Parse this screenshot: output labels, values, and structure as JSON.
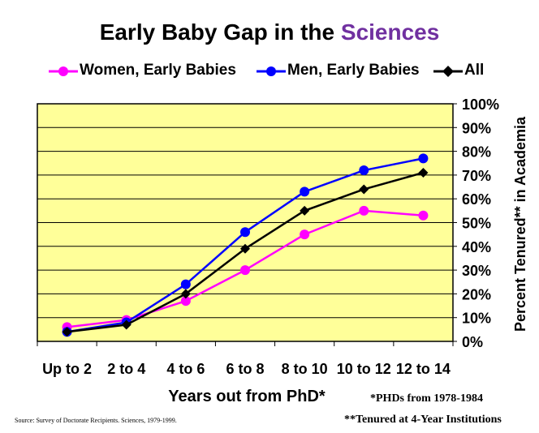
{
  "chart_data": {
    "type": "line",
    "title_parts": [
      "Early Baby Gap in the ",
      "Sciences"
    ],
    "title_accent": "#7030a0",
    "xlabel": "Years out from PhD*",
    "ylabel": "Percent Tenured** in Academia",
    "categories": [
      "Up to 2",
      "2 to 4",
      "4 to 6",
      "6 to 8",
      "8 to 10",
      "10 to 12",
      "12 to 14"
    ],
    "ylim": [
      0,
      100
    ],
    "yticks": [
      "0%",
      "10%",
      "20%",
      "30%",
      "40%",
      "50%",
      "60%",
      "70%",
      "80%",
      "90%",
      "100%"
    ],
    "grid": true,
    "plot_background": "#ffff99",
    "series": [
      {
        "name": "Women, Early Babies",
        "color": "#ff00ff",
        "marker": "circle",
        "values": [
          6,
          9,
          17,
          30,
          45,
          55,
          53
        ]
      },
      {
        "name": "Men, Early Babies",
        "color": "#0000ff",
        "marker": "circle",
        "values": [
          4,
          8,
          24,
          46,
          63,
          72,
          77
        ]
      },
      {
        "name": "All",
        "color": "#000000",
        "marker": "diamond",
        "values": [
          4,
          7,
          20,
          39,
          55,
          64,
          71
        ]
      }
    ],
    "legend_position": "top"
  },
  "footnotes": {
    "phds": "*PHDs from 1978-1984",
    "tenured": "**Tenured at 4-Year Institutions",
    "source": "Source: Survey of Doctorate Recipients.  Sciences, 1979-1999."
  }
}
